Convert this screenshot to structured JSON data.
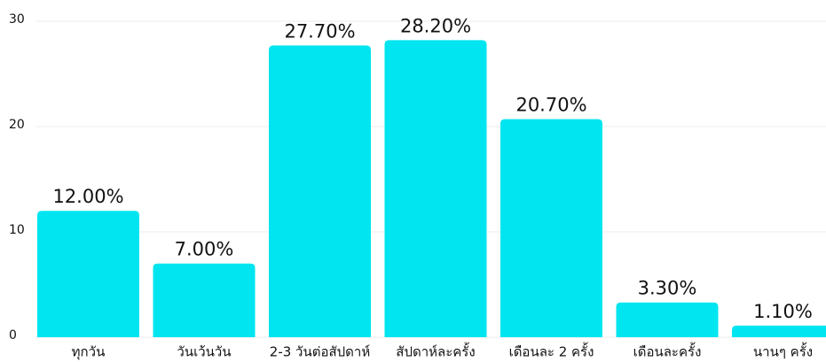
{
  "chart_data": {
    "type": "bar",
    "categories": [
      "ทุกวัน",
      "วันเว้นวัน",
      "2-3 วันต่อสัปดาห์",
      "สัปดาห์ละครั้ง",
      "เดือนละ 2 ครั้ง",
      "เดือนละครั้ง",
      "นานๆ ครั้ง"
    ],
    "values": [
      12,
      7,
      27.7,
      28.2,
      20.7,
      3.3,
      1.1
    ],
    "value_labels": [
      "12.00%",
      "7.00%",
      "27.70%",
      "28.20%",
      "20.70%",
      "3.30%",
      "1.10%"
    ],
    "color": "#00e5ef",
    "ylim": [
      0,
      30
    ],
    "yticks": [
      0,
      10,
      20,
      30
    ],
    "grid": true
  }
}
